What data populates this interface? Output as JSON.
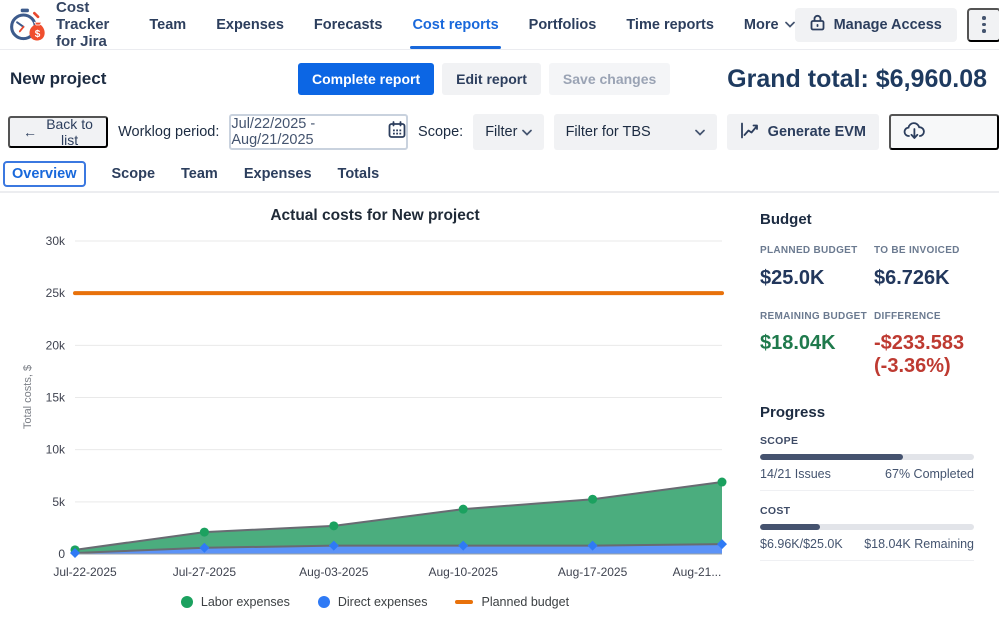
{
  "app": {
    "title": "Cost Tracker for Jira"
  },
  "nav": {
    "items": [
      {
        "label": "Team"
      },
      {
        "label": "Expenses"
      },
      {
        "label": "Forecasts"
      },
      {
        "label": "Cost reports",
        "active": true
      },
      {
        "label": "Portfolios"
      },
      {
        "label": "Time reports"
      },
      {
        "label": "More"
      }
    ],
    "manage_access_label": "Manage Access"
  },
  "header": {
    "project_name": "New project",
    "complete_report_label": "Complete report",
    "edit_report_label": "Edit report",
    "save_changes_label": "Save changes",
    "grand_total_label": "Grand total: $6,960.08"
  },
  "toolbar": {
    "back_arrow": "←",
    "back_label": "Back to list",
    "worklog_label": "Worklog period:",
    "worklog_value": "Jul/22/2025 - Aug/21/2025",
    "scope_label": "Scope:",
    "scope_filter_value": "Filter",
    "saved_filter_value": "Filter for TBS",
    "generate_evm_label": "Generate EVM"
  },
  "tabs": [
    {
      "label": "Overview",
      "active": true
    },
    {
      "label": "Scope"
    },
    {
      "label": "Team"
    },
    {
      "label": "Expenses"
    },
    {
      "label": "Totals"
    }
  ],
  "chart_data": {
    "type": "area",
    "title": "Actual costs for New project",
    "ylabel": "Total costs, $",
    "x": [
      "Jul-22-2025",
      "Jul-27-2025",
      "Aug-03-2025",
      "Aug-10-2025",
      "Aug-17-2025",
      "Aug-21..."
    ],
    "ylim": [
      0,
      30000
    ],
    "yticks": [
      {
        "v": 0,
        "label": "0"
      },
      {
        "v": 5000,
        "label": "5k"
      },
      {
        "v": 10000,
        "label": "10k"
      },
      {
        "v": 15000,
        "label": "15k"
      },
      {
        "v": 20000,
        "label": "20k"
      },
      {
        "v": 25000,
        "label": "25k"
      },
      {
        "v": 30000,
        "label": "30k"
      }
    ],
    "grid": true,
    "legend_position": "bottom",
    "series": [
      {
        "name": "Labor expenses",
        "marker": "circle",
        "color": "#1BA15F",
        "area": "#4BAD7E",
        "stack_top_values": [
          400,
          2100,
          2700,
          4300,
          5250,
          6900
        ],
        "note": "values are stacked totals (labor + direct) as drawn"
      },
      {
        "name": "Direct expenses",
        "marker": "diamond",
        "color": "#2F7AF5",
        "area": "#5C93F7",
        "stack_top_values": [
          100,
          600,
          800,
          800,
          800,
          950
        ]
      }
    ],
    "planned_budget": {
      "name": "Planned budget",
      "value": 25000,
      "color": "#E8710A"
    }
  },
  "budget": {
    "heading": "Budget",
    "metrics": [
      {
        "label": "PLANNED BUDGET",
        "value": "$25.0K"
      },
      {
        "label": "TO BE INVOICED",
        "value": "$6.726K"
      },
      {
        "label": "REMAINING BUDGET",
        "value": "$18.04K"
      },
      {
        "label": "DIFFERENCE",
        "value": "-$233.583 (-3.36%)"
      }
    ]
  },
  "progress": {
    "heading": "Progress",
    "scope": {
      "label": "SCOPE",
      "left": "14/21 Issues",
      "right": "67% Completed",
      "percent": 67
    },
    "cost": {
      "label": "COST",
      "left": "$6.96K/$25.0K",
      "right": "$18.04K Remaining",
      "percent": 28
    }
  },
  "colors": {
    "accent_blue": "#0C66E4",
    "link_blue": "#1868DB",
    "navy_text": "#1C2B41",
    "green_value": "#1F7A4C",
    "red_value": "#BE3A31",
    "planned_budget_orange": "#E8710A",
    "labor_green": "#1BA15F",
    "direct_blue": "#2F7AF5"
  }
}
